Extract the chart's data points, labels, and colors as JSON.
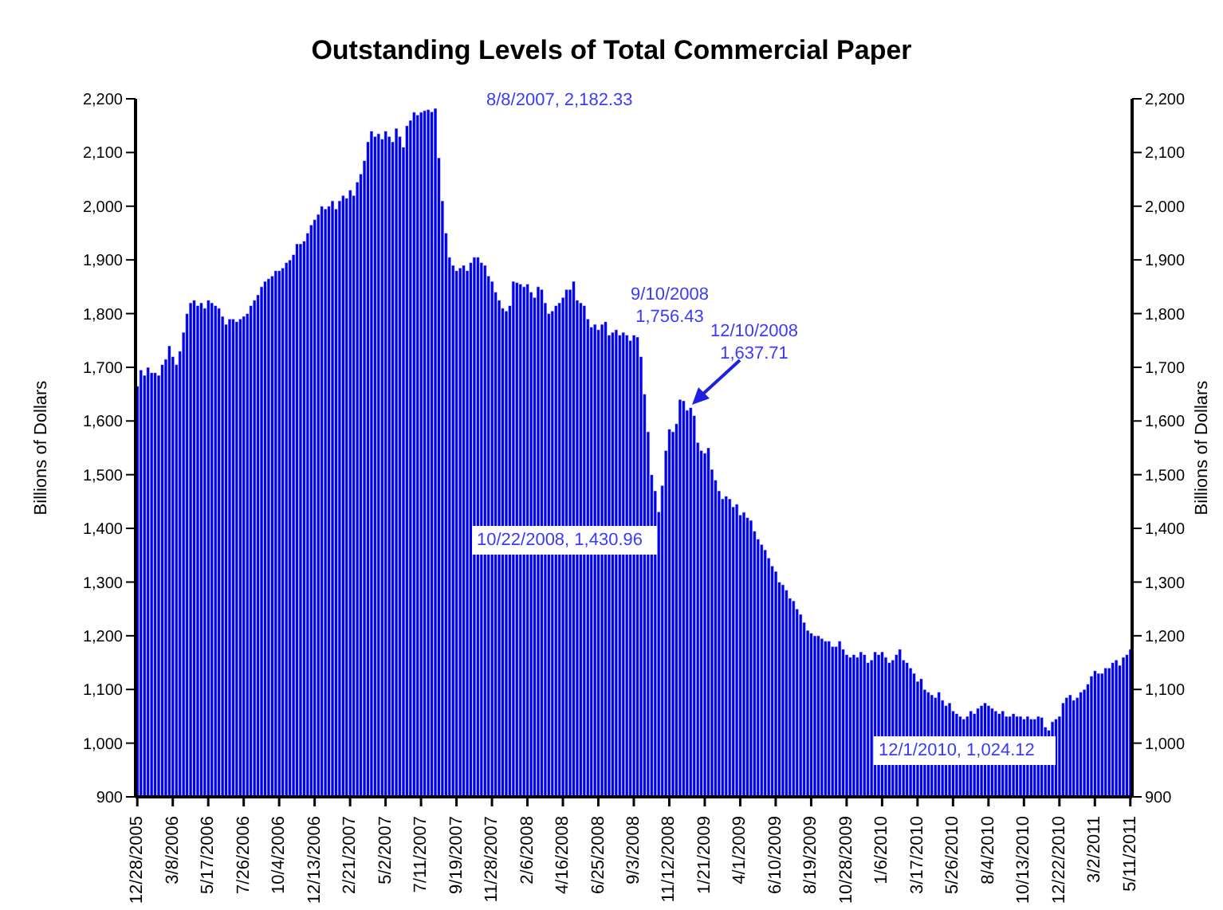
{
  "chart_data": {
    "type": "bar",
    "title": "Outstanding Levels of Total Commercial Paper",
    "ylabel": "Billions of Dollars",
    "y2label": "Billions of Dollars",
    "categories": [
      "12/28/2005",
      null,
      null,
      null,
      null,
      null,
      null,
      null,
      null,
      null,
      "3/8/2006",
      null,
      null,
      null,
      null,
      null,
      null,
      null,
      null,
      null,
      "5/17/2006",
      null,
      null,
      null,
      null,
      null,
      null,
      null,
      null,
      null,
      "7/26/2006",
      null,
      null,
      null,
      null,
      null,
      null,
      null,
      null,
      null,
      "10/4/2006",
      null,
      null,
      null,
      null,
      null,
      null,
      null,
      null,
      null,
      "12/13/2006",
      null,
      null,
      null,
      null,
      null,
      null,
      null,
      null,
      null,
      "2/21/2007",
      null,
      null,
      null,
      null,
      null,
      null,
      null,
      null,
      null,
      "5/2/2007",
      null,
      null,
      null,
      null,
      null,
      null,
      null,
      null,
      null,
      "7/11/2007",
      null,
      null,
      null,
      null,
      null,
      null,
      null,
      null,
      null,
      "9/19/2007",
      null,
      null,
      null,
      null,
      null,
      null,
      null,
      null,
      null,
      "11/28/2007",
      null,
      null,
      null,
      null,
      null,
      null,
      null,
      null,
      null,
      "2/6/2008",
      null,
      null,
      null,
      null,
      null,
      null,
      null,
      null,
      null,
      "4/16/2008",
      null,
      null,
      null,
      null,
      null,
      null,
      null,
      null,
      null,
      "6/25/2008",
      null,
      null,
      null,
      null,
      null,
      null,
      null,
      null,
      null,
      "9/3/2008",
      null,
      null,
      null,
      null,
      null,
      null,
      null,
      null,
      null,
      "11/12/2008",
      null,
      null,
      null,
      null,
      null,
      null,
      null,
      null,
      null,
      "1/21/2009",
      null,
      null,
      null,
      null,
      null,
      null,
      null,
      null,
      null,
      "4/1/2009",
      null,
      null,
      null,
      null,
      null,
      null,
      null,
      null,
      null,
      "6/10/2009",
      null,
      null,
      null,
      null,
      null,
      null,
      null,
      null,
      null,
      "8/19/2009",
      null,
      null,
      null,
      null,
      null,
      null,
      null,
      null,
      null,
      "10/28/2009",
      null,
      null,
      null,
      null,
      null,
      null,
      null,
      null,
      null,
      "1/6/2010",
      null,
      null,
      null,
      null,
      null,
      null,
      null,
      null,
      null,
      "3/17/2010",
      null,
      null,
      null,
      null,
      null,
      null,
      null,
      null,
      null,
      "5/26/2010",
      null,
      null,
      null,
      null,
      null,
      null,
      null,
      null,
      null,
      "8/4/2010",
      null,
      null,
      null,
      null,
      null,
      null,
      null,
      null,
      null,
      "10/13/2010",
      null,
      null,
      null,
      null,
      null,
      null,
      null,
      null,
      null,
      "12/22/2010",
      null,
      null,
      null,
      null,
      null,
      null,
      null,
      null,
      null,
      "3/2/2011",
      null,
      null,
      null,
      null,
      null,
      null,
      null,
      null,
      null,
      "5/11/2011"
    ],
    "values": [
      1665,
      1695,
      1685,
      1700,
      1690,
      1690,
      1685,
      1705,
      1715,
      1740,
      1720,
      1705,
      1730,
      1765,
      1800,
      1820,
      1825,
      1815,
      1820,
      1810,
      1825,
      1820,
      1815,
      1810,
      1795,
      1780,
      1790,
      1790,
      1785,
      1790,
      1795,
      1800,
      1815,
      1825,
      1835,
      1850,
      1860,
      1865,
      1870,
      1880,
      1880,
      1885,
      1895,
      1900,
      1910,
      1930,
      1930,
      1935,
      1950,
      1965,
      1975,
      1985,
      2000,
      1995,
      2000,
      2010,
      1995,
      2010,
      2020,
      2015,
      2030,
      2020,
      2045,
      2060,
      2085,
      2120,
      2140,
      2130,
      2135,
      2125,
      2140,
      2130,
      2120,
      2145,
      2130,
      2110,
      2150,
      2160,
      2175,
      2170,
      2175,
      2178,
      2180,
      2176,
      2182.33,
      2090,
      2010,
      1950,
      1905,
      1890,
      1880,
      1885,
      1890,
      1880,
      1895,
      1905,
      1905,
      1895,
      1890,
      1870,
      1860,
      1840,
      1825,
      1810,
      1805,
      1815,
      1860,
      1858,
      1855,
      1850,
      1855,
      1840,
      1830,
      1850,
      1845,
      1820,
      1800,
      1805,
      1815,
      1820,
      1830,
      1845,
      1845,
      1860,
      1825,
      1820,
      1815,
      1790,
      1775,
      1780,
      1770,
      1780,
      1785,
      1760,
      1765,
      1770,
      1760,
      1765,
      1760,
      1750,
      1760,
      1756.43,
      1720,
      1650,
      1580,
      1500,
      1470,
      1430.96,
      1480,
      1545,
      1585,
      1580,
      1595,
      1640,
      1637.71,
      1620,
      1625,
      1610,
      1560,
      1545,
      1540,
      1550,
      1510,
      1490,
      1470,
      1455,
      1460,
      1455,
      1440,
      1445,
      1425,
      1430,
      1420,
      1415,
      1395,
      1380,
      1370,
      1360,
      1345,
      1330,
      1320,
      1300,
      1295,
      1285,
      1270,
      1265,
      1250,
      1240,
      1225,
      1210,
      1205,
      1200,
      1200,
      1195,
      1190,
      1190,
      1180,
      1180,
      1190,
      1175,
      1165,
      1160,
      1165,
      1160,
      1170,
      1165,
      1150,
      1155,
      1170,
      1165,
      1170,
      1160,
      1150,
      1155,
      1165,
      1175,
      1155,
      1150,
      1140,
      1130,
      1115,
      1120,
      1100,
      1095,
      1090,
      1085,
      1095,
      1080,
      1070,
      1075,
      1060,
      1055,
      1050,
      1045,
      1050,
      1060,
      1055,
      1065,
      1070,
      1075,
      1070,
      1065,
      1060,
      1055,
      1060,
      1050,
      1050,
      1055,
      1050,
      1050,
      1045,
      1050,
      1045,
      1045,
      1050,
      1048,
      1030,
      1024.12,
      1040,
      1045,
      1050,
      1075,
      1085,
      1090,
      1080,
      1085,
      1095,
      1100,
      1110,
      1125,
      1135,
      1130,
      1130,
      1140,
      1140,
      1150,
      1155,
      1145,
      1160,
      1165,
      1175
    ],
    "color": "#0000f0",
    "ylim": [
      900,
      2200
    ],
    "yticks": [
      900,
      {
        "value": 1000,
        "label": "1,000"
      },
      {
        "value": 1100,
        "label": "1,100"
      },
      {
        "value": 1200,
        "label": "1,200"
      },
      {
        "value": 1300,
        "label": "1,300"
      },
      {
        "value": 1400,
        "label": "1,400"
      },
      {
        "value": 1500,
        "label": "1,500"
      },
      {
        "value": 1600,
        "label": "1,600"
      },
      {
        "value": 1700,
        "label": "1,700"
      },
      {
        "value": 1800,
        "label": "1,800"
      },
      {
        "value": 1900,
        "label": "1,900"
      },
      {
        "value": 2000,
        "label": "2,000"
      },
      {
        "value": 2100,
        "label": "2,100"
      },
      {
        "value": 2200,
        "label": "2,200"
      }
    ],
    "y2lim": [
      900,
      2200
    ],
    "y2ticks": [
      900,
      {
        "value": 1000,
        "label": "1,000"
      },
      {
        "value": 1100,
        "label": "1,100"
      },
      {
        "value": 1200,
        "label": "1,200"
      },
      {
        "value": 1300,
        "label": "1,300"
      },
      {
        "value": 1400,
        "label": "1,400"
      },
      {
        "value": 1500,
        "label": "1,500"
      },
      {
        "value": 1600,
        "label": "1,600"
      },
      {
        "value": 1700,
        "label": "1,700"
      },
      {
        "value": 1800,
        "label": "1,800"
      },
      {
        "value": 1900,
        "label": "1,900"
      },
      {
        "value": 2000,
        "label": "2,000"
      },
      {
        "value": 2100,
        "label": "2,100"
      },
      {
        "value": 2200,
        "label": "2,200"
      }
    ],
    "annotations": [
      "8/8/2007, 2,182.33",
      "9/10/2008 1,756.43",
      "12/10/2008 1,637.71",
      "10/22/2008, 1,430.96",
      "12/1/2010, 1,024.12"
    ]
  }
}
